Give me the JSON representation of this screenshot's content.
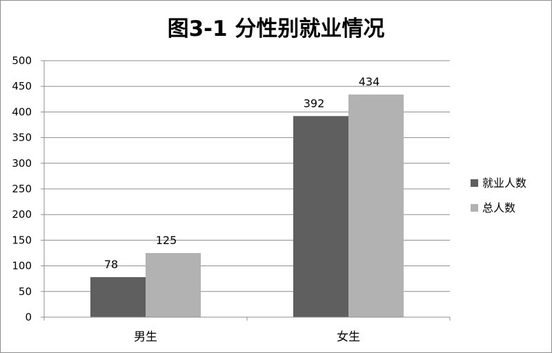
{
  "chart_data": {
    "type": "bar",
    "title": "图3-1   分性别就业情况",
    "categories": [
      "男生",
      "女生"
    ],
    "series": [
      {
        "name": "就业人数",
        "values": [
          78,
          392
        ],
        "color": "#5f5f5f"
      },
      {
        "name": "总人数",
        "values": [
          125,
          434
        ],
        "color": "#b2b2b2"
      }
    ],
    "ylim": [
      0,
      500
    ],
    "yticks": [
      0,
      50,
      100,
      150,
      200,
      250,
      300,
      350,
      400,
      450,
      500
    ],
    "xlabel": "",
    "ylabel": "",
    "grid": true,
    "legend_position": "right"
  }
}
